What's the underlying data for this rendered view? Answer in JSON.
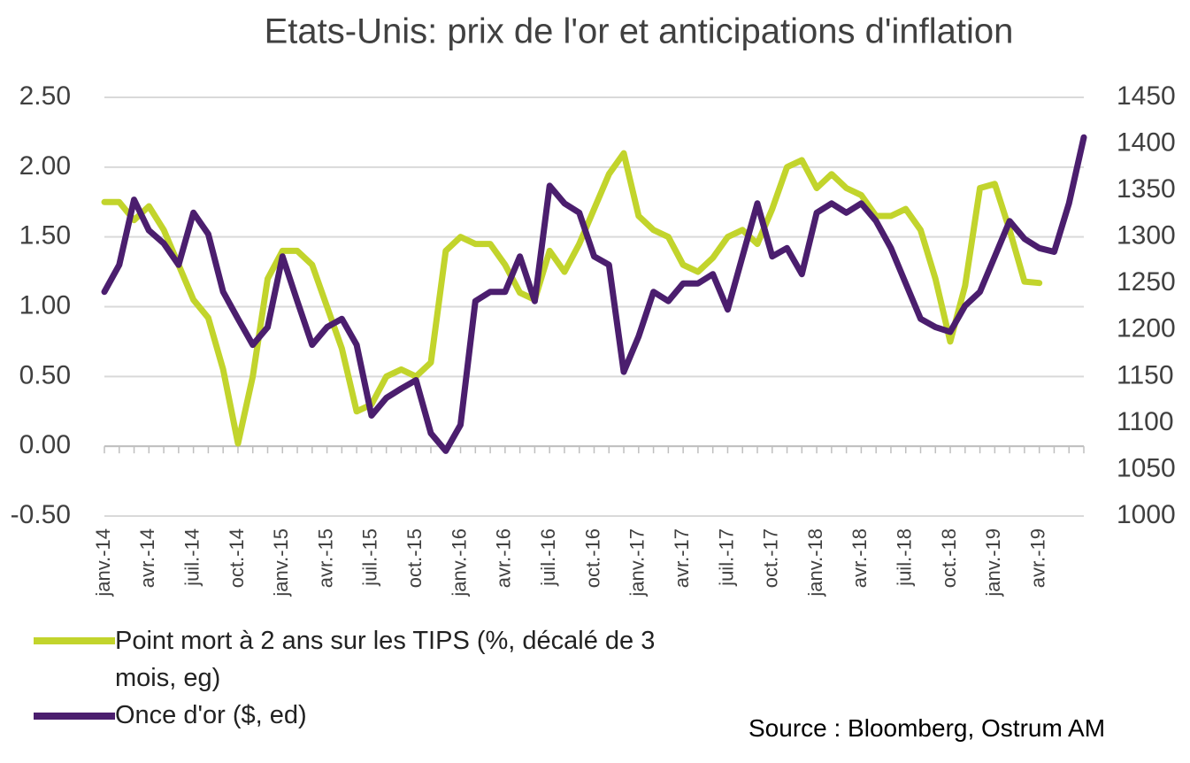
{
  "chart_data": {
    "type": "line",
    "title": "Etats-Unis: prix de l'or et anticipations d'inflation",
    "source": "Source : Bloomberg, Ostrum AM",
    "categories": [
      "janv.-14",
      null,
      null,
      "avr.-14",
      null,
      null,
      "juil.-14",
      null,
      null,
      "oct.-14",
      null,
      null,
      "janv.-15",
      null,
      null,
      "avr.-15",
      null,
      null,
      "juil.-15",
      null,
      null,
      "oct.-15",
      null,
      null,
      "janv.-16",
      null,
      null,
      "avr.-16",
      null,
      null,
      "juil.-16",
      null,
      null,
      "oct.-16",
      null,
      null,
      "janv.-17",
      null,
      null,
      "avr.-17",
      null,
      null,
      "juil.-17",
      null,
      null,
      "oct.-17",
      null,
      null,
      "janv.-18",
      null,
      null,
      "avr.-18",
      null,
      null,
      "juil.-18",
      null,
      null,
      "oct.-18",
      null,
      null,
      "janv.-19",
      null,
      null,
      "avr.-19",
      null,
      null,
      null
    ],
    "series": [
      {
        "name": "Point mort à 2 ans sur les TIPS  (%, décalé de 3 mois, eg)",
        "color": "#c2d42c",
        "axis": "y",
        "values": [
          1.75,
          1.75,
          1.62,
          1.72,
          1.55,
          1.3,
          1.05,
          0.92,
          0.55,
          0.02,
          0.5,
          1.2,
          1.4,
          1.4,
          1.3,
          1.0,
          0.7,
          0.25,
          0.3,
          0.5,
          0.55,
          0.5,
          0.6,
          1.4,
          1.5,
          1.45,
          1.45,
          1.3,
          1.1,
          1.05,
          1.4,
          1.25,
          1.45,
          1.7,
          1.95,
          2.1,
          1.65,
          1.55,
          1.5,
          1.3,
          1.25,
          1.35,
          1.5,
          1.55,
          1.45,
          1.7,
          2.0,
          2.05,
          1.85,
          1.95,
          1.85,
          1.8,
          1.65,
          1.65,
          1.7,
          1.55,
          1.2,
          0.75,
          1.15,
          1.85,
          1.88,
          1.55,
          1.18,
          1.17,
          null,
          null,
          null
        ]
      },
      {
        "name": "Once d'or ($, ed)",
        "color": "#4b1e6e",
        "axis": "y2",
        "values": [
          1241,
          1270,
          1340,
          1307,
          1293,
          1270,
          1326,
          1303,
          1241,
          1212,
          1184,
          1203,
          1279,
          1231,
          1184,
          1203,
          1212,
          1184,
          1108,
          1127,
          1137,
          1146,
          1089,
          1070,
          1098,
          1231,
          1241,
          1241,
          1279,
          1231,
          1355,
          1336,
          1326,
          1279,
          1270,
          1155,
          1193,
          1241,
          1231,
          1250,
          1250,
          1260,
          1222,
          1279,
          1336,
          1279,
          1288,
          1260,
          1326,
          1336,
          1326,
          1336,
          1317,
          1288,
          1250,
          1212,
          1203,
          1198,
          1226,
          1241,
          1279,
          1317,
          1298,
          1288,
          1284,
          1336,
          1407
        ]
      }
    ],
    "ylim": [
      -0.5,
      2.5
    ],
    "yticks": [
      {
        "value": -0.5,
        "label": "-0.50"
      },
      {
        "value": 0,
        "label": "0.00"
      },
      {
        "value": 0.5,
        "label": "0.50"
      },
      {
        "value": 1,
        "label": "1.00"
      },
      {
        "value": 1.5,
        "label": "1.50"
      },
      {
        "value": 2,
        "label": "2.00"
      },
      {
        "value": 2.5,
        "label": "2.50"
      }
    ],
    "y2lim": [
      1000,
      1450
    ],
    "y2ticks": [
      1000,
      1050,
      1100,
      1150,
      1200,
      1250,
      1300,
      1350,
      1400,
      1450
    ],
    "grid": true
  }
}
